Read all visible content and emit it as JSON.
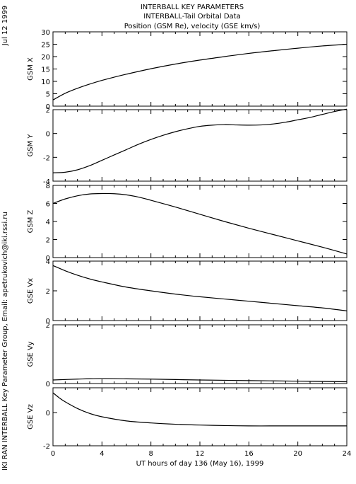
{
  "header": {
    "title_line1": "INTERBALL KEY PARAMETERS",
    "title_line2": "INTERBALL-Tail Orbital Data",
    "title_line3": "Position (GSM Re), velocity (GSE km/s)"
  },
  "side": {
    "date": "Jul 12 1999",
    "credit": "IKI RAN INTERBALL Key Parameter Group, Email: apetrukovich@iki.rssi.ru"
  },
  "chart_data": {
    "type": "line",
    "xlabel": "UT hours of day 136 (May 16), 1999",
    "x_ticks": [
      "0",
      "4",
      "8",
      "12",
      "16",
      "20",
      "24"
    ],
    "xlim": [
      0,
      24
    ],
    "panels": [
      {
        "ylabel": "GSM X",
        "ylim": [
          0,
          30
        ],
        "y_ticks": [
          0,
          5,
          10,
          15,
          20,
          25,
          30
        ],
        "x": [
          0,
          1,
          2,
          3,
          4,
          5,
          6,
          8,
          10,
          12,
          14,
          16,
          18,
          20,
          22,
          24
        ],
        "y": [
          2.5,
          5.2,
          7.2,
          8.9,
          10.4,
          11.7,
          12.9,
          15.1,
          17.0,
          18.6,
          20.0,
          21.3,
          22.4,
          23.4,
          24.3,
          25.0
        ]
      },
      {
        "ylabel": "GSM Y",
        "ylim": [
          -4,
          2
        ],
        "y_ticks": [
          -4,
          -2,
          0,
          2
        ],
        "x": [
          0,
          1,
          2,
          3,
          4,
          5,
          6,
          7,
          8,
          9,
          10,
          11,
          12,
          13,
          14,
          15,
          16,
          17,
          18,
          19,
          20,
          21,
          22,
          23,
          24
        ],
        "y": [
          -3.3,
          -3.25,
          -3.05,
          -2.7,
          -2.25,
          -1.8,
          -1.35,
          -0.9,
          -0.5,
          -0.15,
          0.15,
          0.4,
          0.6,
          0.7,
          0.75,
          0.72,
          0.7,
          0.72,
          0.8,
          0.95,
          1.15,
          1.35,
          1.6,
          1.85,
          2.05
        ]
      },
      {
        "ylabel": "GSM Z",
        "ylim": [
          0,
          8
        ],
        "y_ticks": [
          0,
          2,
          4,
          6,
          8
        ],
        "x": [
          0,
          1,
          2,
          3,
          4,
          5,
          6,
          7,
          8,
          10,
          12,
          14,
          16,
          18,
          20,
          22,
          24
        ],
        "y": [
          6.0,
          6.5,
          6.85,
          7.05,
          7.1,
          7.08,
          6.95,
          6.7,
          6.35,
          5.6,
          4.8,
          4.0,
          3.25,
          2.55,
          1.85,
          1.15,
          0.4
        ]
      },
      {
        "ylabel": "GSE Vx",
        "ylim": [
          0,
          4
        ],
        "y_ticks": [
          0,
          2,
          4
        ],
        "x": [
          0,
          1,
          2,
          3,
          4,
          6,
          8,
          10,
          12,
          14,
          16,
          18,
          20,
          22,
          24
        ],
        "y": [
          3.7,
          3.35,
          3.05,
          2.8,
          2.6,
          2.25,
          2.0,
          1.78,
          1.6,
          1.45,
          1.3,
          1.15,
          1.0,
          0.85,
          0.65
        ]
      },
      {
        "ylabel": "GSE Vy",
        "ylim": [
          0,
          2
        ],
        "y_ticks": [
          0,
          2
        ],
        "x": [
          0,
          2,
          4,
          6,
          8,
          12,
          16,
          20,
          24
        ],
        "y": [
          0.12,
          0.15,
          0.17,
          0.16,
          0.15,
          0.12,
          0.1,
          0.08,
          0.06
        ]
      },
      {
        "ylabel": "GSE Vz",
        "ylim": [
          -2,
          1.5
        ],
        "y_ticks": [
          -2,
          0
        ],
        "x": [
          0,
          0.5,
          1,
          2,
          3,
          4,
          6,
          8,
          10,
          12,
          14,
          16,
          18,
          20,
          22,
          24
        ],
        "y": [
          1.2,
          0.9,
          0.65,
          0.25,
          -0.05,
          -0.25,
          -0.5,
          -0.62,
          -0.7,
          -0.75,
          -0.78,
          -0.8,
          -0.8,
          -0.8,
          -0.8,
          -0.8
        ]
      }
    ]
  }
}
